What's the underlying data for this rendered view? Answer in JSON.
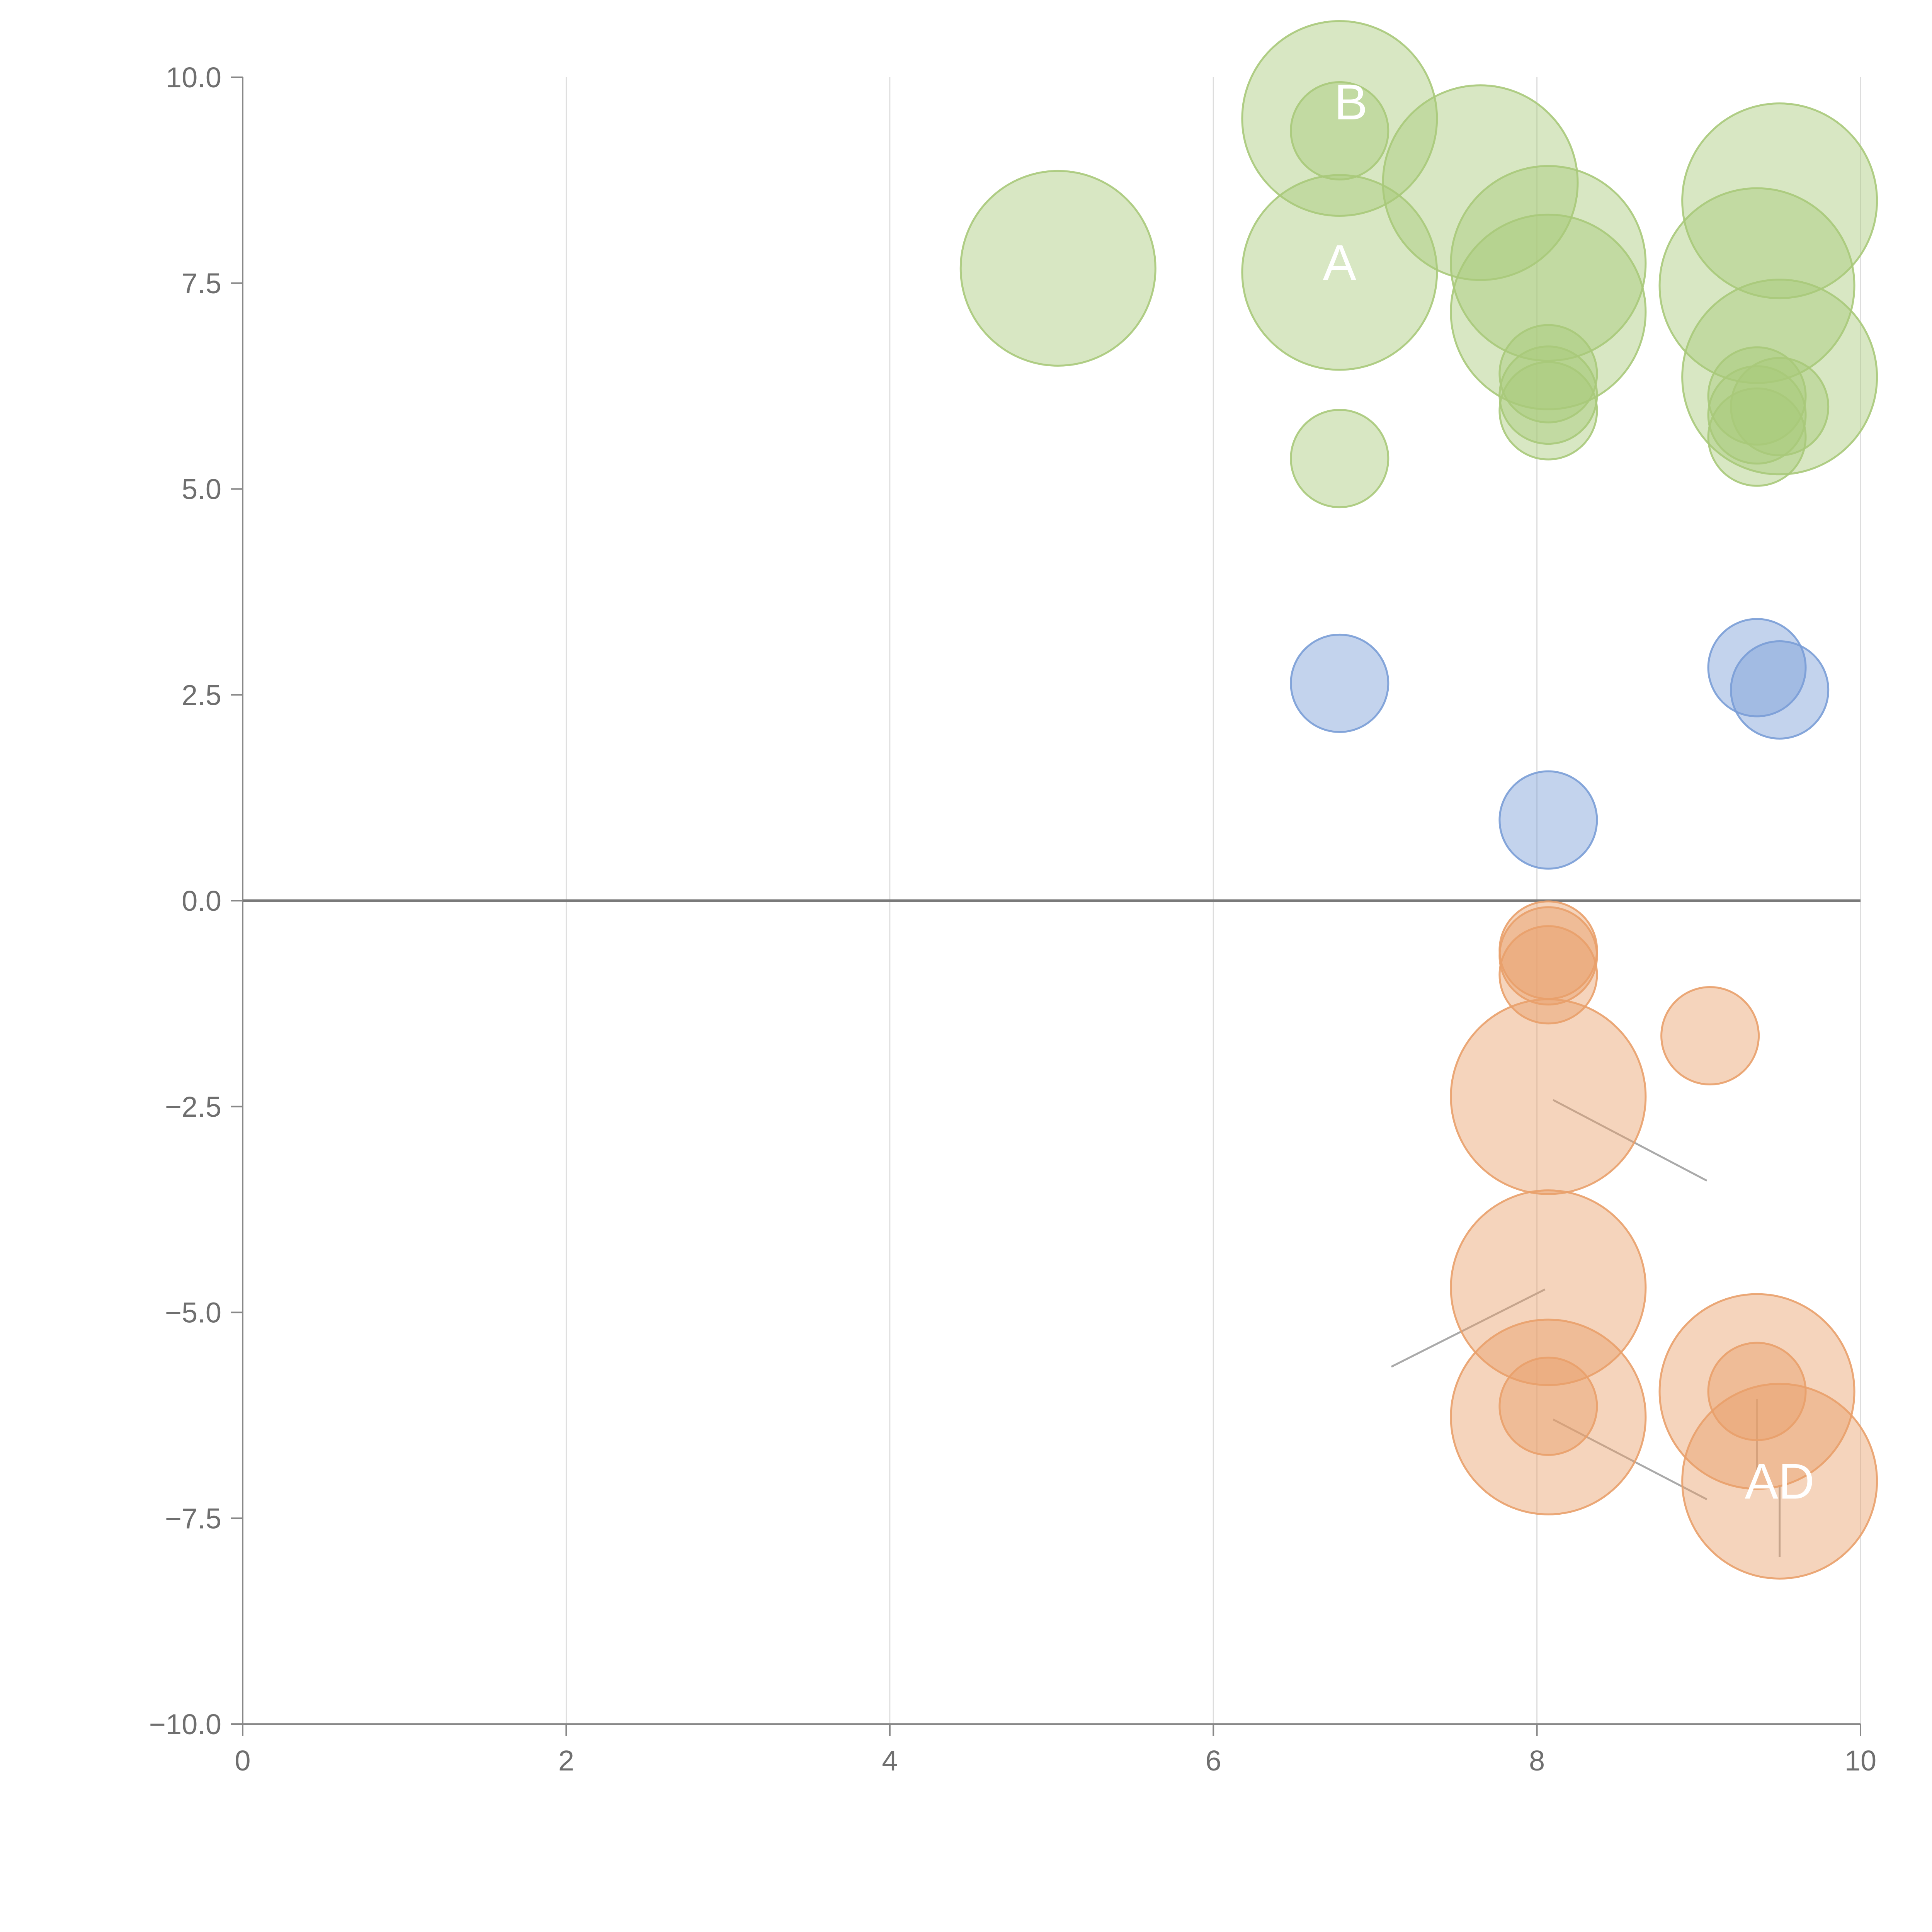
{
  "chart_data": {
    "type": "scatter",
    "title": "",
    "xlabel": "",
    "ylabel": "",
    "xlim": [
      0,
      10
    ],
    "ylim": [
      -10,
      10
    ],
    "x_ticks": [
      "0",
      "2",
      "4",
      "6",
      "8",
      "10"
    ],
    "y_ticks": [
      "10.0",
      "7.5",
      "5.0",
      "2.5",
      "0.0",
      "−2.5",
      "−5.0",
      "−7.5",
      "−10.0"
    ],
    "grid": "vertical",
    "legend": "none",
    "colors": {
      "green": "#a9c97a",
      "blue": "#7a9dd6",
      "orange": "#e9a06a",
      "zero_line": "#7a7a7a",
      "grid": "#dddddd",
      "axis": "#888888"
    },
    "series": [
      {
        "color": "green",
        "points": [
          {
            "x": 6.78,
            "y": 9.5,
            "r": 2.8
          },
          {
            "x": 6.78,
            "y": 9.35,
            "r": 1.4
          },
          {
            "x": 7.65,
            "y": 8.72,
            "r": 2.8
          },
          {
            "x": 9.5,
            "y": 8.5,
            "r": 2.8
          },
          {
            "x": 5.04,
            "y": 7.68,
            "r": 2.8
          },
          {
            "x": 6.78,
            "y": 7.63,
            "r": 2.8
          },
          {
            "x": 8.07,
            "y": 7.74,
            "r": 2.8
          },
          {
            "x": 9.36,
            "y": 7.47,
            "r": 2.8
          },
          {
            "x": 8.07,
            "y": 7.15,
            "r": 2.8
          },
          {
            "x": 9.5,
            "y": 6.36,
            "r": 2.8
          },
          {
            "x": 8.07,
            "y": 6.4,
            "r": 1.4
          },
          {
            "x": 8.07,
            "y": 6.14,
            "r": 1.4
          },
          {
            "x": 8.07,
            "y": 5.95,
            "r": 1.4
          },
          {
            "x": 9.36,
            "y": 6.13,
            "r": 1.4
          },
          {
            "x": 9.36,
            "y": 5.9,
            "r": 1.4
          },
          {
            "x": 9.5,
            "y": 6.0,
            "r": 1.4
          },
          {
            "x": 9.36,
            "y": 5.63,
            "r": 1.4
          },
          {
            "x": 6.78,
            "y": 5.37,
            "r": 1.4
          }
        ]
      },
      {
        "color": "blue",
        "points": [
          {
            "x": 6.78,
            "y": 2.64,
            "r": 1.4
          },
          {
            "x": 9.36,
            "y": 2.83,
            "r": 1.4
          },
          {
            "x": 9.5,
            "y": 2.56,
            "r": 1.4
          },
          {
            "x": 8.07,
            "y": 0.98,
            "r": 1.4
          }
        ]
      },
      {
        "color": "orange",
        "points": [
          {
            "x": 8.07,
            "y": -0.6,
            "r": 1.4
          },
          {
            "x": 8.07,
            "y": -0.67,
            "r": 1.4
          },
          {
            "x": 8.07,
            "y": -0.9,
            "r": 1.4
          },
          {
            "x": 9.07,
            "y": -1.64,
            "r": 1.4
          },
          {
            "x": 8.07,
            "y": -2.38,
            "r": 2.8
          },
          {
            "x": 8.07,
            "y": -4.7,
            "r": 2.8
          },
          {
            "x": 9.36,
            "y": -5.96,
            "r": 2.8
          },
          {
            "x": 9.36,
            "y": -5.96,
            "r": 1.4
          },
          {
            "x": 8.07,
            "y": -6.27,
            "r": 2.8
          },
          {
            "x": 8.07,
            "y": -6.14,
            "r": 1.4
          },
          {
            "x": 9.5,
            "y": -7.05,
            "r": 2.8
          }
        ]
      }
    ],
    "connectors": [
      {
        "x1": 8.1,
        "y1": -2.42,
        "x2": 9.05,
        "y2": -3.4
      },
      {
        "x1": 8.05,
        "y1": -4.72,
        "x2": 7.1,
        "y2": -5.66
      },
      {
        "x1": 8.1,
        "y1": -6.3,
        "x2": 9.05,
        "y2": -7.27
      },
      {
        "x1": 9.36,
        "y1": -6.05,
        "x2": 9.36,
        "y2": -7.0
      },
      {
        "x1": 9.5,
        "y1": -7.1,
        "x2": 9.5,
        "y2": -7.97
      }
    ],
    "annotations": [
      {
        "text": "B",
        "x": 6.85,
        "y": 9.7
      },
      {
        "text": "A",
        "x": 6.78,
        "y": 7.75
      },
      {
        "text": "AD",
        "x": 9.5,
        "y": -7.05
      }
    ]
  }
}
